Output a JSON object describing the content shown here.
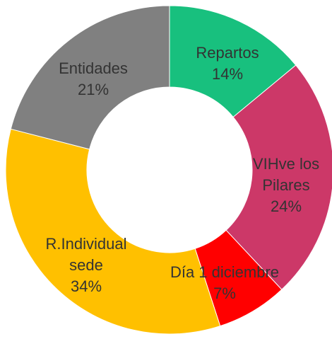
{
  "chart_data": {
    "type": "donut",
    "categories": [
      "Repartos",
      "VIHve los Pilares",
      "Día 1 diciembre",
      "R.Individual sede",
      "Entidades"
    ],
    "values": [
      14,
      24,
      7,
      34,
      21
    ],
    "value_labels": [
      "14%",
      "24%",
      "7%",
      "34%",
      "21%"
    ],
    "colors": [
      "#18c07e",
      "#cc3868",
      "#ff0000",
      "#ffc000",
      "#808080"
    ]
  }
}
